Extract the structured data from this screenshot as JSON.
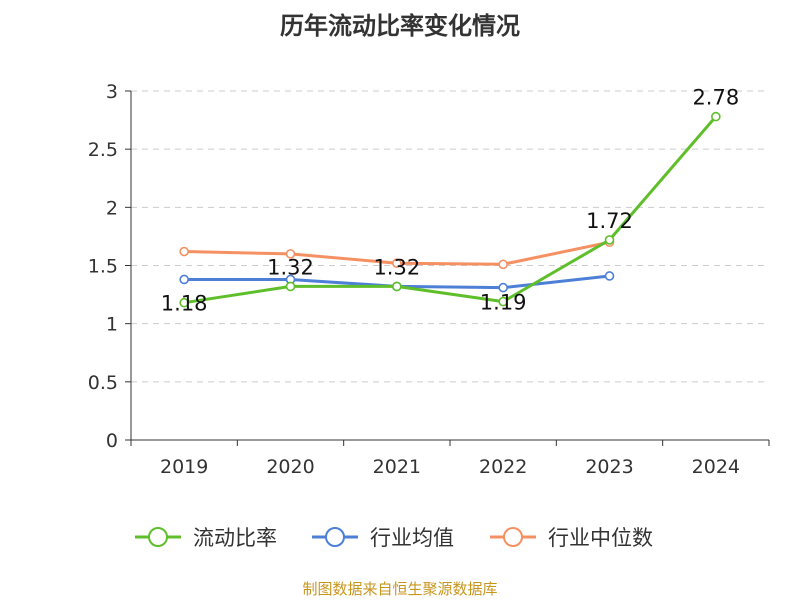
{
  "title": "历年流动比率变化情况",
  "source_note": "制图数据来自恒生聚源数据库",
  "colors": {
    "axis": "#333333",
    "grid": "#cccccc",
    "text": "#333333"
  },
  "chart_data": {
    "type": "line",
    "title": "历年流动比率变化情况",
    "categories": [
      "2019",
      "2020",
      "2021",
      "2022",
      "2023",
      "2024"
    ],
    "ylim": [
      0,
      3
    ],
    "yticks": [
      0,
      0.5,
      1,
      1.5,
      2,
      2.5,
      3
    ],
    "ytick_labels": [
      "0",
      "0.5",
      "1",
      "1.5",
      "2",
      "2.5",
      "3"
    ],
    "grid": true,
    "legend_position": "bottom",
    "xlabel": "",
    "ylabel": "",
    "series": [
      {
        "name": "流动比率",
        "color": "#5fbf2a",
        "values": [
          1.18,
          1.32,
          1.32,
          1.19,
          1.72,
          2.78
        ],
        "labels": [
          "1.18",
          "1.32",
          "1.32",
          "1.19",
          "1.72",
          "2.78"
        ]
      },
      {
        "name": "行业均值",
        "color": "#4d7fd6",
        "values": [
          1.38,
          1.38,
          1.32,
          1.31,
          1.41,
          null
        ],
        "labels": []
      },
      {
        "name": "行业中位数",
        "color": "#f59062",
        "values": [
          1.62,
          1.6,
          1.52,
          1.51,
          1.7,
          null
        ],
        "labels": []
      }
    ]
  }
}
